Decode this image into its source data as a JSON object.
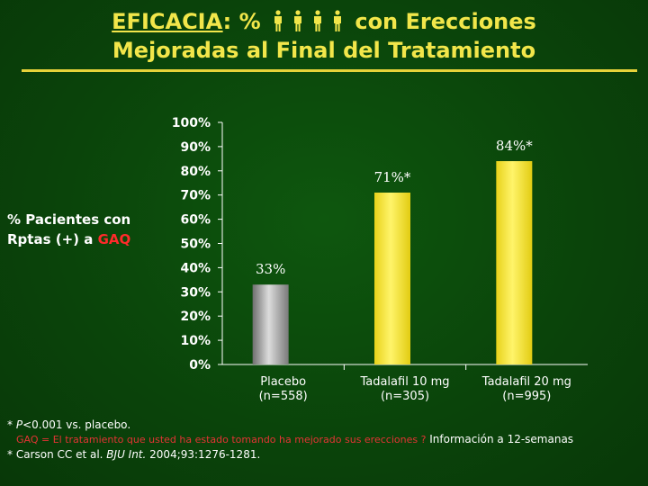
{
  "title": {
    "keyword": "EFICACIA",
    "part1_rest": ": %",
    "part1_end": "con Erecciones",
    "line2": "Mejoradas al Final del Tratamiento",
    "icon": "man-figure-icon",
    "icon_count": 4
  },
  "y_axis_title": {
    "line1": "% Pacientes con",
    "line2_prefix": "Rptas (+) a ",
    "line2_highlight": "GAQ"
  },
  "chart_data": {
    "type": "bar",
    "categories": [
      "Placebo (n=558)",
      "Tadalafil 10 mg (n=305)",
      "Tadalafil 20 mg (n=995)"
    ],
    "category_lines": [
      [
        "Placebo",
        "(n=558)"
      ],
      [
        "Tadalafil 10 mg",
        "(n=305)"
      ],
      [
        "Tadalafil 20 mg",
        "(n=995)"
      ]
    ],
    "values": [
      33,
      71,
      84
    ],
    "data_labels": [
      "33%",
      "71%*",
      "84%*"
    ],
    "bar_colors": [
      "#a9a9a9",
      "#f4e422",
      "#f4e422"
    ],
    "ylim": [
      0,
      100
    ],
    "yticks": [
      0,
      10,
      20,
      30,
      40,
      50,
      60,
      70,
      80,
      90,
      100
    ],
    "ytick_labels": [
      "0%",
      "10%",
      "20%",
      "30%",
      "40%",
      "50%",
      "60%",
      "70%",
      "80%",
      "90%",
      "100%"
    ],
    "grid": false
  },
  "footnotes": {
    "note1_prefix": "* ",
    "note1_italic": "P",
    "note1_rest": "<0.001 vs. placebo.",
    "note2_red": "GAQ = El tratamiento que usted ha estado tomando ha mejorado sus erecciones ?",
    "note2_white": " Información a 12-semanas",
    "note3_prefix": "* Carson CC et al. ",
    "note3_italic": "BJU Int.",
    "note3_rest": " 2004;93:1276-1281."
  },
  "colors": {
    "background": "#0b4a0b",
    "title": "#f2e64a",
    "highlight_red": "#ff2a2a"
  }
}
